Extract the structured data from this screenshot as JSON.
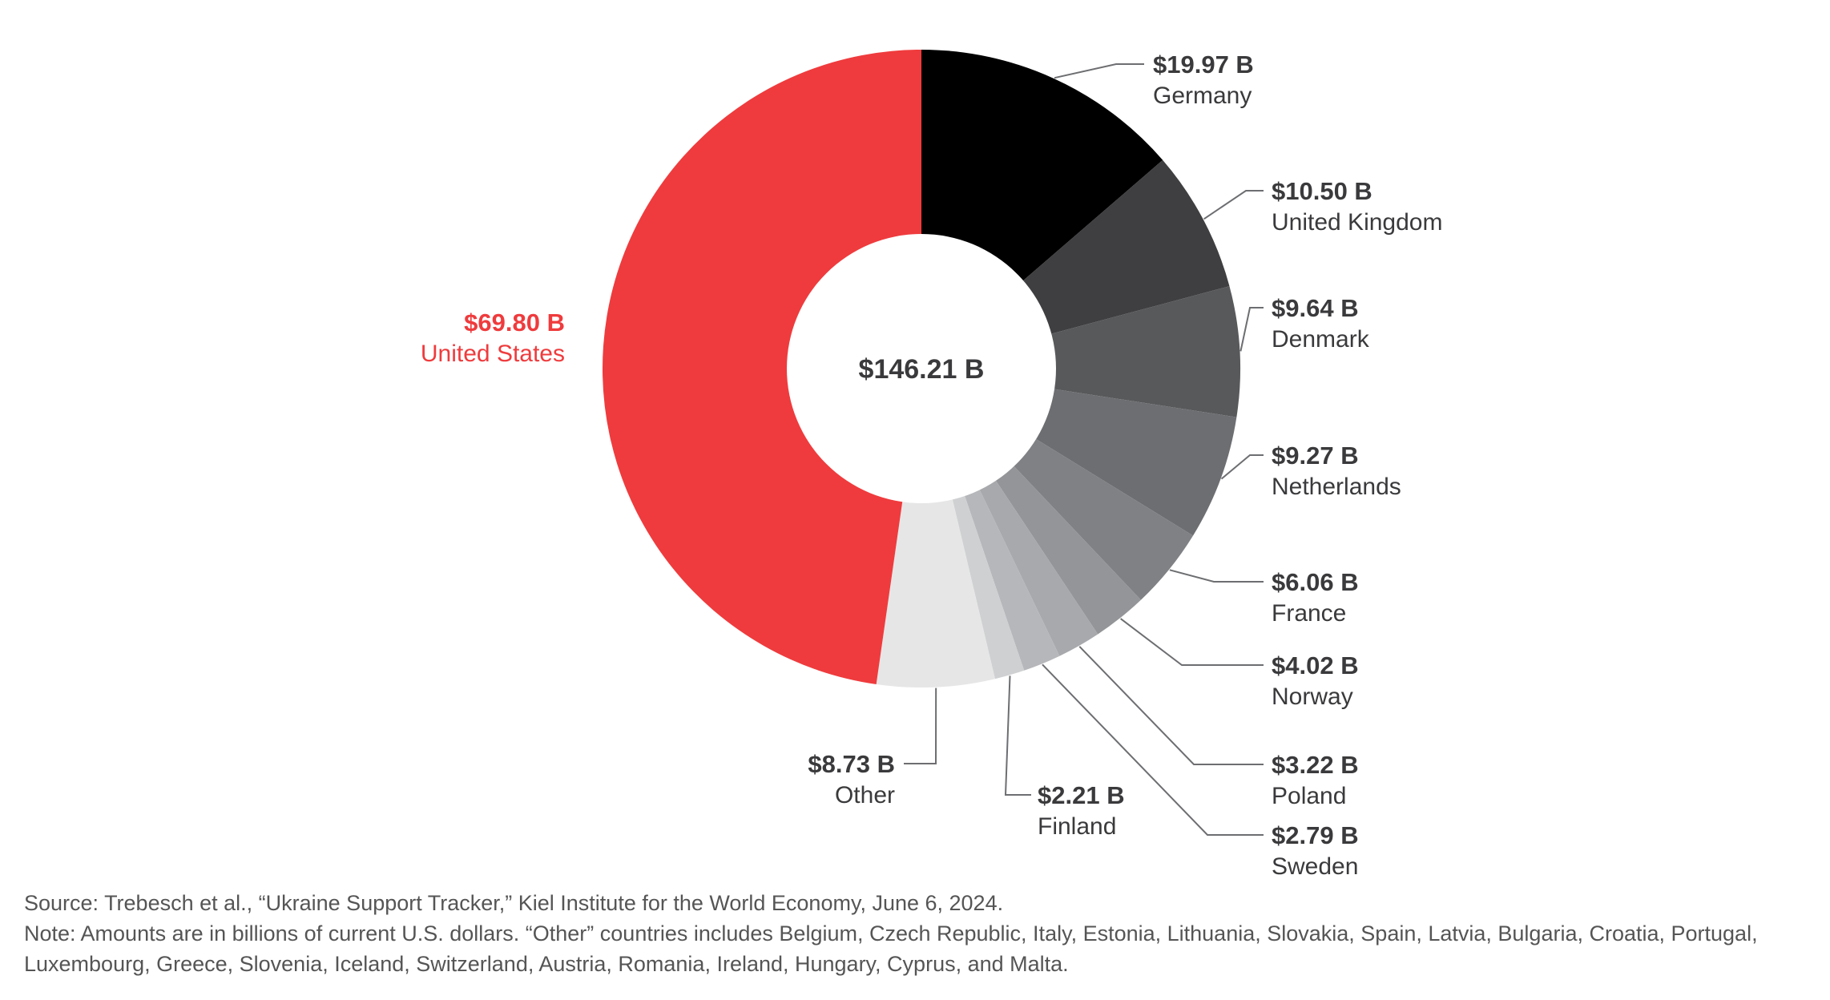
{
  "chart_data": {
    "type": "pie",
    "variant": "donut",
    "center_label": "$146.21 B",
    "slices": [
      {
        "label": "Germany",
        "value_label": "$19.97 B",
        "value": 19.97,
        "color": "#000000"
      },
      {
        "label": "United Kingdom",
        "value_label": "$10.50 B",
        "value": 10.5,
        "color": "#3f3f41"
      },
      {
        "label": "Denmark",
        "value_label": "$9.64 B",
        "value": 9.64,
        "color": "#58595b"
      },
      {
        "label": "Netherlands",
        "value_label": "$9.27 B",
        "value": 9.27,
        "color": "#6d6e71"
      },
      {
        "label": "France",
        "value_label": "$6.06 B",
        "value": 6.06,
        "color": "#808184"
      },
      {
        "label": "Norway",
        "value_label": "$4.02 B",
        "value": 4.02,
        "color": "#939598"
      },
      {
        "label": "Poland",
        "value_label": "$3.22 B",
        "value": 3.22,
        "color": "#a7a9ac"
      },
      {
        "label": "Sweden",
        "value_label": "$2.79 B",
        "value": 2.79,
        "color": "#b6b7ba"
      },
      {
        "label": "Finland",
        "value_label": "$2.21 B",
        "value": 2.21,
        "color": "#cfd0d2"
      },
      {
        "label": "Other",
        "value_label": "$8.73 B",
        "value": 8.73,
        "color": "#e6e6e7"
      },
      {
        "label": "United States",
        "value_label": "$69.80 B",
        "value": 69.8,
        "color": "#ef3b3d"
      }
    ],
    "label_text_color": "#3a3a3c",
    "highlight_label_color": "#ef3b3d",
    "leader_line_color": "#6d6e71"
  },
  "source_note": "Source: Trebesch et al., “Ukraine Support Tracker,” Kiel Institute for the World Economy, June 6, 2024.",
  "note_line_1": "Note: Amounts are in billions of current U.S. dollars. “Other” countries includes Belgium, Czech Republic, Italy, Estonia, Lithuania, Slovakia, Spain, Latvia, Bulgaria, Croatia, Portugal,",
  "note_line_2": "Luxembourg, Greece, Slovenia, Iceland, Switzerland, Austria, Romania, Ireland, Hungary, Cyprus, and Malta."
}
